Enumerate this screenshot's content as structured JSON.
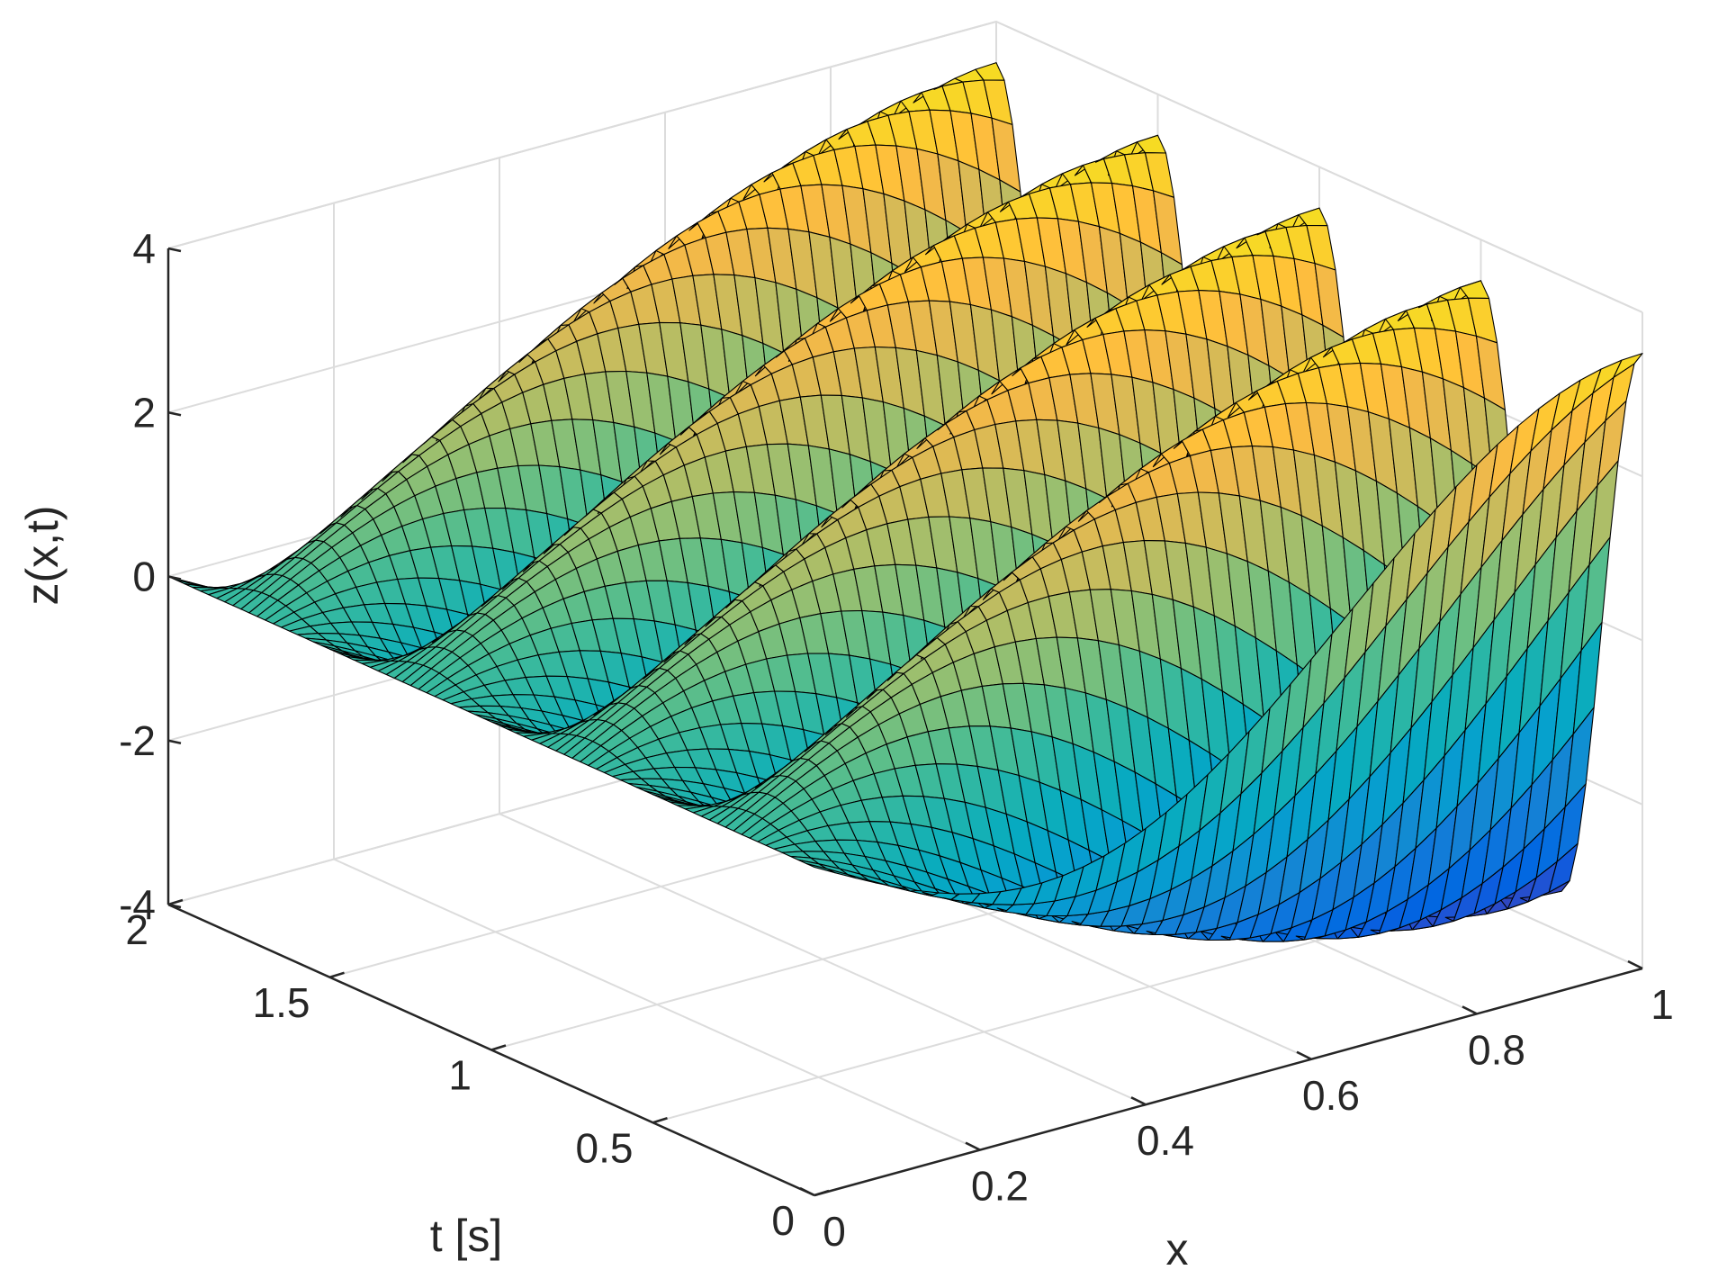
{
  "chart_data": {
    "type": "surface",
    "title": "",
    "xlabel": "x",
    "ylabel": "t [s]",
    "zlabel": "z(x,t)",
    "xlim": [
      0,
      1
    ],
    "ylim": [
      0,
      2
    ],
    "zlim": [
      -4,
      4
    ],
    "x_ticks": [
      "0",
      "0.2",
      "0.4",
      "0.6",
      "0.8",
      "1"
    ],
    "y_ticks": [
      "0",
      "0.5",
      "1",
      "1.5",
      "2"
    ],
    "z_ticks": [
      "-4",
      "-2",
      "0",
      "2",
      "4"
    ],
    "grid": true,
    "colormap": "parula",
    "edge_color": "#000000",
    "surface": {
      "x_samples": 41,
      "t_samples": 81,
      "peak_amplitude": 3.5,
      "notes_as_data": [
        {
          "x": 0,
          "z": 0
        },
        {
          "x": 1,
          "t": 0,
          "z": -3.5
        },
        {
          "x": 1,
          "t": 0.5,
          "z": 3.5
        },
        {
          "x": 1,
          "t": 1,
          "z": 3.5
        },
        {
          "x": 1,
          "t": 1.5,
          "z": 3.5
        },
        {
          "x": 1,
          "t": 2,
          "z": 3.5
        }
      ]
    }
  }
}
